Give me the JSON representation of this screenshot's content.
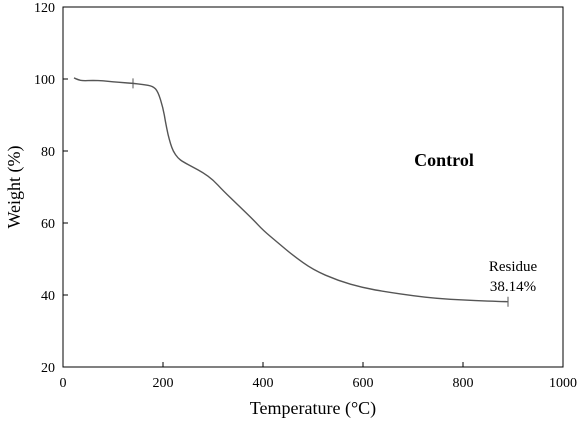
{
  "chart_data": {
    "type": "line",
    "title": "",
    "xlabel": "Temperature (°C)",
    "ylabel": "Weight (%)",
    "xlim": [
      0,
      1000
    ],
    "ylim": [
      20,
      120
    ],
    "xticks": [
      0,
      200,
      400,
      600,
      800,
      1000
    ],
    "yticks": [
      20,
      40,
      60,
      80,
      100,
      120
    ],
    "grid": false,
    "series": [
      {
        "x": [
          22,
          30,
          40,
          60,
          80,
          100,
          120,
          140,
          160,
          180,
          190,
          200,
          205,
          210,
          215,
          220,
          230,
          240,
          260,
          280,
          300,
          320,
          350,
          380,
          400,
          430,
          460,
          500,
          550,
          600,
          650,
          700,
          750,
          800,
          850,
          890
        ],
        "values": [
          100.3,
          99.8,
          99.5,
          99.6,
          99.5,
          99.2,
          99.0,
          98.8,
          98.5,
          98.0,
          96.5,
          92.0,
          88.0,
          84.5,
          82.0,
          80.0,
          78.0,
          77.0,
          75.5,
          74.0,
          72.0,
          69.0,
          65.0,
          61.0,
          58.0,
          54.5,
          51.0,
          47.0,
          44.0,
          42.0,
          40.8,
          39.8,
          39.0,
          38.6,
          38.3,
          38.14
        ],
        "color": "#555555"
      }
    ],
    "annotations": {
      "panel_label": "Control",
      "residue_label": "Residue",
      "residue_value": "38.14%"
    },
    "markers": [
      {
        "x": 140,
        "y": 98.8
      },
      {
        "x": 890,
        "y": 38.14
      }
    ]
  }
}
